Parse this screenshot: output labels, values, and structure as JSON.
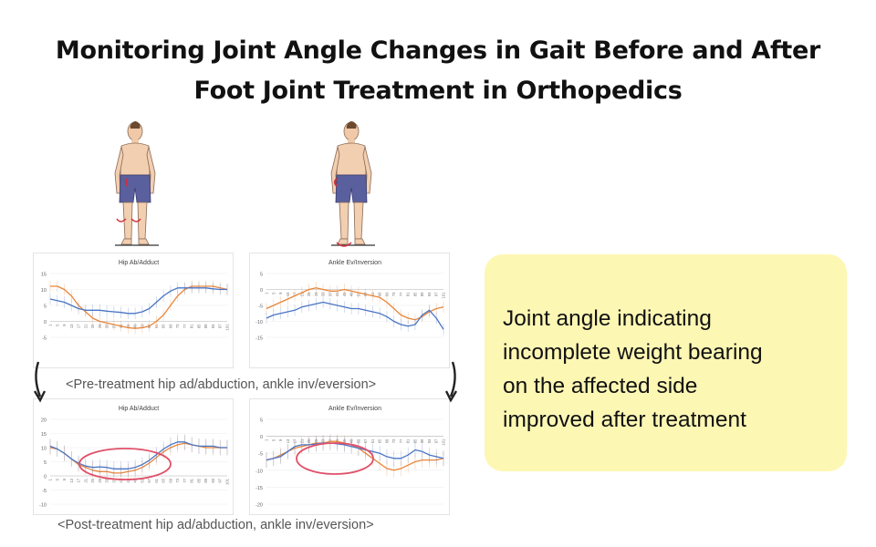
{
  "title": "Monitoring Joint Angle Changes in Gait Before and After Foot Joint Treatment in Orthopedics",
  "note": "Joint angle indicating\nincomplete weight bearing\non the affected side\nimproved after treatment",
  "captions": {
    "pre": "<Pre-treatment hip ad/abduction, ankle inv/eversion>",
    "post": "<Post-treatment hip ad/abduction, ankle inv/eversion>"
  },
  "colors": {
    "series_a": "#e8863a",
    "series_b": "#4a74c4",
    "highlight": "#e0506a",
    "note_bg": "#fdf7b4"
  },
  "chart_data": [
    {
      "id": "pre-hip",
      "type": "line",
      "title": "Hip Ab/Adduct",
      "ylim": [
        -5,
        15
      ],
      "yticks": [
        15,
        10,
        5,
        0,
        -5
      ],
      "x": [
        1,
        5,
        9,
        13,
        17,
        21,
        25,
        29,
        33,
        37,
        41,
        45,
        49,
        53,
        57,
        61,
        65,
        69,
        73,
        77,
        81,
        85,
        89,
        93,
        97,
        101
      ],
      "series": [
        {
          "color": "#e8863a",
          "values": [
            11,
            11,
            10,
            8,
            5,
            3,
            1,
            0,
            -0.5,
            -1,
            -1.5,
            -2,
            -2.2,
            -2,
            -1.5,
            0,
            2,
            5,
            8,
            10,
            11,
            11,
            11,
            11,
            10.5,
            10
          ]
        },
        {
          "color": "#4a74c4",
          "values": [
            7,
            6.5,
            6,
            5,
            4,
            3.5,
            3.5,
            3.5,
            3.2,
            3,
            2.8,
            2.5,
            2.5,
            3,
            4,
            6,
            8,
            9.5,
            10.5,
            10.5,
            10.5,
            10.5,
            10.5,
            10.2,
            10,
            10
          ]
        }
      ]
    },
    {
      "id": "pre-ankle",
      "type": "line",
      "title": "Ankle Ev/Inversion",
      "ylim": [
        -15,
        5
      ],
      "yticks": [
        5,
        0,
        -5,
        -10,
        -15
      ],
      "x": [
        1,
        5,
        9,
        13,
        17,
        21,
        25,
        29,
        33,
        37,
        41,
        45,
        49,
        53,
        57,
        61,
        65,
        69,
        73,
        77,
        81,
        85,
        89,
        93,
        97,
        101
      ],
      "series": [
        {
          "color": "#e8863a",
          "values": [
            -6,
            -5,
            -4,
            -3,
            -2,
            -1,
            0,
            0.5,
            0,
            -0.5,
            -0.5,
            0,
            -0.5,
            -1,
            -1.5,
            -2,
            -2.5,
            -4,
            -6,
            -8,
            -9,
            -9.5,
            -8.5,
            -7,
            -6,
            -5.5
          ]
        },
        {
          "color": "#4a74c4",
          "values": [
            -9,
            -8,
            -7.5,
            -7,
            -6.5,
            -5.5,
            -5,
            -4.5,
            -4,
            -4.5,
            -5,
            -5.5,
            -6,
            -6,
            -6.5,
            -7,
            -7.5,
            -8.5,
            -10,
            -11,
            -11.5,
            -11,
            -8,
            -6.5,
            -9,
            -12.5
          ]
        }
      ]
    },
    {
      "id": "post-hip",
      "type": "line",
      "title": "Hip Ab/Adduct",
      "ylim": [
        -10,
        20
      ],
      "yticks": [
        20,
        15,
        10,
        5,
        0,
        -5,
        -10
      ],
      "x": [
        1,
        5,
        9,
        13,
        17,
        21,
        25,
        29,
        33,
        37,
        41,
        45,
        49,
        53,
        57,
        61,
        65,
        69,
        73,
        77,
        81,
        85,
        89,
        93,
        97,
        101
      ],
      "series": [
        {
          "color": "#e8863a",
          "values": [
            10,
            9.5,
            8,
            6,
            4,
            3,
            2,
            1.5,
            1.5,
            1,
            1,
            1.5,
            2,
            3,
            4.5,
            6.5,
            8.5,
            10,
            11,
            11.5,
            11,
            10.5,
            10,
            10,
            10,
            10
          ]
        },
        {
          "color": "#4a74c4",
          "values": [
            10.5,
            9.5,
            8,
            6,
            4.5,
            3.5,
            3,
            3.2,
            3,
            2.5,
            2.5,
            2.5,
            3,
            4,
            5.5,
            7.5,
            9.5,
            11,
            12,
            12,
            11,
            10.5,
            10.5,
            10.5,
            10,
            10
          ]
        }
      ]
    },
    {
      "id": "post-ankle",
      "type": "line",
      "title": "Ankle Ev/Inversion",
      "ylim": [
        -20,
        5
      ],
      "yticks": [
        5,
        0,
        -5,
        -10,
        -15,
        -20
      ],
      "x": [
        1,
        5,
        9,
        13,
        17,
        21,
        25,
        29,
        33,
        37,
        41,
        45,
        49,
        53,
        57,
        61,
        65,
        69,
        73,
        77,
        81,
        85,
        89,
        93,
        97,
        101
      ],
      "series": [
        {
          "color": "#e8863a",
          "values": [
            -7,
            -6.5,
            -5.5,
            -4.5,
            -3.5,
            -3,
            -2.5,
            -2,
            -2,
            -1.5,
            -1.5,
            -2,
            -2.5,
            -3.5,
            -5,
            -6.5,
            -8,
            -9.5,
            -10,
            -9.5,
            -8.5,
            -7.5,
            -7,
            -7,
            -7,
            -6.5
          ]
        },
        {
          "color": "#4a74c4",
          "values": [
            -7,
            -6.5,
            -6,
            -4.5,
            -3,
            -2.5,
            -2.5,
            -2.3,
            -2,
            -2,
            -2.2,
            -2.5,
            -3,
            -3.5,
            -4,
            -4.5,
            -5,
            -6,
            -6.5,
            -6.5,
            -5.5,
            -4,
            -4.5,
            -5.5,
            -6,
            -6.5
          ]
        }
      ]
    }
  ]
}
